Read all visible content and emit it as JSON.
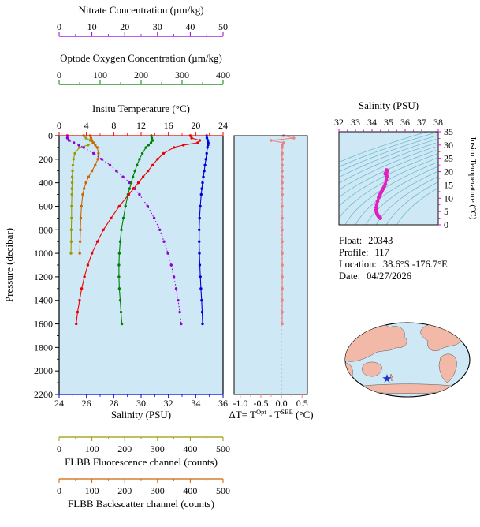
{
  "figure": {
    "plot_background": "#cfe8f6"
  },
  "axes": {
    "nitrate": {
      "title": "Nitrate Concentration (µm/kg)",
      "color": "#9400d3",
      "range": [
        0,
        50
      ],
      "ticks": [
        "0",
        "10",
        "20",
        "30",
        "40",
        "50"
      ]
    },
    "oxygen": {
      "title": "Optode Oxygen Concentration (µm/kg)",
      "color": "#008000",
      "range": [
        0,
        400
      ],
      "ticks": [
        "0",
        "100",
        "200",
        "300",
        "400"
      ]
    },
    "temperature": {
      "title": "Insitu Temperature (°C)",
      "color": "#ee0000",
      "range": [
        0,
        24
      ],
      "ticks": [
        "0",
        "4",
        "8",
        "12",
        "16",
        "20",
        "24"
      ]
    },
    "salinity": {
      "title": "Salinity (PSU)",
      "color": "#0000dd",
      "range": [
        24,
        36
      ],
      "ticks": [
        "24",
        "26",
        "28",
        "30",
        "32",
        "34",
        "36"
      ]
    },
    "pressure": {
      "title": "Pressure (decibar)",
      "color": "#000000",
      "range": [
        0,
        2200
      ],
      "ticks": [
        "0",
        "200",
        "400",
        "600",
        "800",
        "1000",
        "1200",
        "1400",
        "1600",
        "1800",
        "2000",
        "2200"
      ]
    },
    "fluorescence": {
      "title": "FLBB Fluorescence channel (counts)",
      "color": "#9a9a00",
      "range": [
        0,
        500
      ],
      "ticks": [
        "0",
        "100",
        "200",
        "300",
        "400",
        "500"
      ]
    },
    "backscatter": {
      "title": "FLBB Backscatter channel (counts)",
      "color": "#cc6600",
      "range": [
        0,
        500
      ],
      "ticks": [
        "0",
        "100",
        "200",
        "300",
        "400",
        "500"
      ]
    },
    "delta_t": {
      "title_parts": {
        "p1": "ΔT= T",
        "sup1": "Opt",
        "p2": " - T",
        "sup2": "SBE",
        "p3": " (°C)"
      },
      "color": "#f08080",
      "range": [
        -1.15,
        0.63
      ],
      "ticks": [
        "-1.0",
        "-0.5",
        "0.0",
        "0.5"
      ]
    },
    "ts_salinity": {
      "title": "Salinity (PSU)",
      "color": "#dd00dd",
      "range": [
        32,
        38
      ],
      "ticks": [
        "32",
        "33",
        "34",
        "35",
        "36",
        "37",
        "38"
      ]
    },
    "ts_temperature": {
      "title": "Insitu Temperature (°C)",
      "color": "#dd00dd",
      "range": [
        0,
        35
      ],
      "ticks": [
        "0",
        "5",
        "10",
        "15",
        "20",
        "25",
        "30",
        "35"
      ]
    }
  },
  "info": {
    "rows": [
      {
        "label": "Float:",
        "value": "20343"
      },
      {
        "label": "Profile:",
        "value": "117"
      },
      {
        "label": "Location:",
        "value": "38.6°S -176.7°E"
      },
      {
        "label": "Date:",
        "value": "04/27/2026"
      }
    ]
  },
  "map": {
    "ocean_color": "#cfe8f6",
    "land_color": "#f2b9a8",
    "marker_color": "#2233cc",
    "marker": "float-location-star"
  },
  "chart_data": {
    "type": "line",
    "title": "Argo float 20343, profile 117 — vertical profiles vs pressure",
    "pressure_units": "decibar",
    "pressure_range": [
      0,
      2200
    ],
    "series": [
      {
        "id": "fluorescence",
        "name": "FLBB Fluorescence channel",
        "units": "counts",
        "axis": "fluorescence",
        "pressure": [
          0,
          20,
          40,
          60,
          80,
          100,
          150,
          200,
          250,
          300,
          350,
          400,
          450,
          500,
          600,
          700,
          800,
          900,
          1000
        ],
        "values": [
          75,
          82,
          95,
          105,
          88,
          62,
          48,
          44,
          42,
          41,
          40,
          40,
          39,
          39,
          38,
          38,
          37,
          37,
          36
        ]
      },
      {
        "id": "backscatter",
        "name": "FLBB Backscatter channel",
        "units": "counts",
        "axis": "backscatter",
        "pressure": [
          0,
          20,
          40,
          60,
          80,
          100,
          150,
          200,
          250,
          300,
          350,
          400,
          450,
          500,
          600,
          700,
          800,
          900,
          1000
        ],
        "values": [
          95,
          97,
          100,
          104,
          110,
          116,
          120,
          118,
          110,
          100,
          90,
          82,
          76,
          72,
          68,
          66,
          65,
          64,
          63
        ]
      },
      {
        "id": "nitrate",
        "name": "Nitrate Concentration",
        "units": "µm/kg",
        "axis": "nitrate",
        "dash": "1.5,2.5",
        "pressure": [
          0,
          20,
          40,
          60,
          80,
          100,
          150,
          200,
          250,
          300,
          350,
          400,
          450,
          500,
          600,
          700,
          800,
          900,
          1000,
          1100,
          1200,
          1300,
          1400,
          1500,
          1600
        ],
        "values": [
          2.5,
          2.5,
          3.0,
          4.5,
          6.0,
          7.5,
          10.5,
          13.0,
          15.5,
          17.5,
          19.5,
          21.5,
          23.0,
          24.5,
          27.0,
          29.0,
          30.7,
          32.0,
          33.2,
          34.2,
          35.0,
          35.7,
          36.3,
          36.8,
          37.2
        ]
      },
      {
        "id": "oxygen",
        "name": "Optode Oxygen Concentration",
        "units": "µm/kg",
        "axis": "oxygen",
        "pressure": [
          0,
          20,
          40,
          60,
          80,
          100,
          150,
          200,
          250,
          300,
          350,
          400,
          450,
          500,
          600,
          700,
          800,
          900,
          1000,
          1100,
          1200,
          1300,
          1400,
          1500,
          1600
        ],
        "values": [
          225,
          226,
          228,
          224,
          218,
          212,
          203,
          196,
          190,
          185,
          180,
          176,
          172,
          168,
          162,
          157,
          152,
          149,
          147,
          146,
          146,
          147,
          149,
          151,
          153
        ]
      },
      {
        "id": "salinity",
        "name": "Salinity",
        "units": "PSU",
        "axis": "salinity",
        "pressure": [
          0,
          20,
          40,
          60,
          80,
          100,
          150,
          200,
          250,
          300,
          350,
          400,
          450,
          500,
          600,
          700,
          800,
          900,
          1000,
          1100,
          1200,
          1300,
          1400,
          1500,
          1600
        ],
        "values": [
          34.8,
          34.82,
          34.88,
          34.92,
          34.9,
          34.86,
          34.8,
          34.74,
          34.68,
          34.62,
          34.56,
          34.5,
          34.45,
          34.4,
          34.33,
          34.28,
          34.25,
          34.25,
          34.27,
          34.3,
          34.34,
          34.38,
          34.43,
          34.47,
          34.5
        ]
      },
      {
        "id": "temperature",
        "name": "Insitu Temperature",
        "units": "°C",
        "axis": "temperature",
        "pressure": [
          0,
          20,
          40,
          60,
          80,
          100,
          150,
          200,
          250,
          300,
          350,
          400,
          450,
          500,
          600,
          700,
          800,
          900,
          1000,
          1100,
          1200,
          1300,
          1400,
          1500,
          1600
        ],
        "values": [
          19.2,
          19.4,
          20.6,
          20.3,
          18.2,
          16.8,
          15.3,
          14.4,
          13.7,
          13.0,
          12.3,
          11.6,
          10.9,
          10.2,
          8.8,
          7.6,
          6.5,
          5.6,
          4.8,
          4.2,
          3.7,
          3.3,
          3.0,
          2.7,
          2.5
        ]
      }
    ],
    "delta_t_series": {
      "id": "delta_t",
      "name": "ΔT = TOpt - TSBE",
      "units": "°C",
      "axis": "delta_t",
      "pressure": [
        0,
        20,
        40,
        60,
        80,
        100,
        150,
        200,
        250,
        300,
        350,
        400,
        450,
        500,
        600,
        700,
        800,
        900,
        1000,
        1100,
        1200,
        1300,
        1400,
        1500,
        1600
      ],
      "values": [
        0.05,
        0.3,
        -0.25,
        0.05,
        0.02,
        0.02,
        0.02,
        0.02,
        0.02,
        0.02,
        0.02,
        0.02,
        0.02,
        0.02,
        0.02,
        0.02,
        0.02,
        0.02,
        0.02,
        0.02,
        0.02,
        0.02,
        0.02,
        0.02,
        0.02
      ]
    },
    "ts_diagram": {
      "curve": "salinity (x) vs temperature (y) from profile series",
      "curve_color": "#e020c0",
      "contour_color": "#63b6c6",
      "sigma_theta_contours": [
        21.5,
        22,
        22.5,
        23,
        23.5,
        24,
        24.5,
        25,
        25.5,
        26,
        26.5,
        27,
        27.5,
        28,
        28.5
      ]
    }
  }
}
